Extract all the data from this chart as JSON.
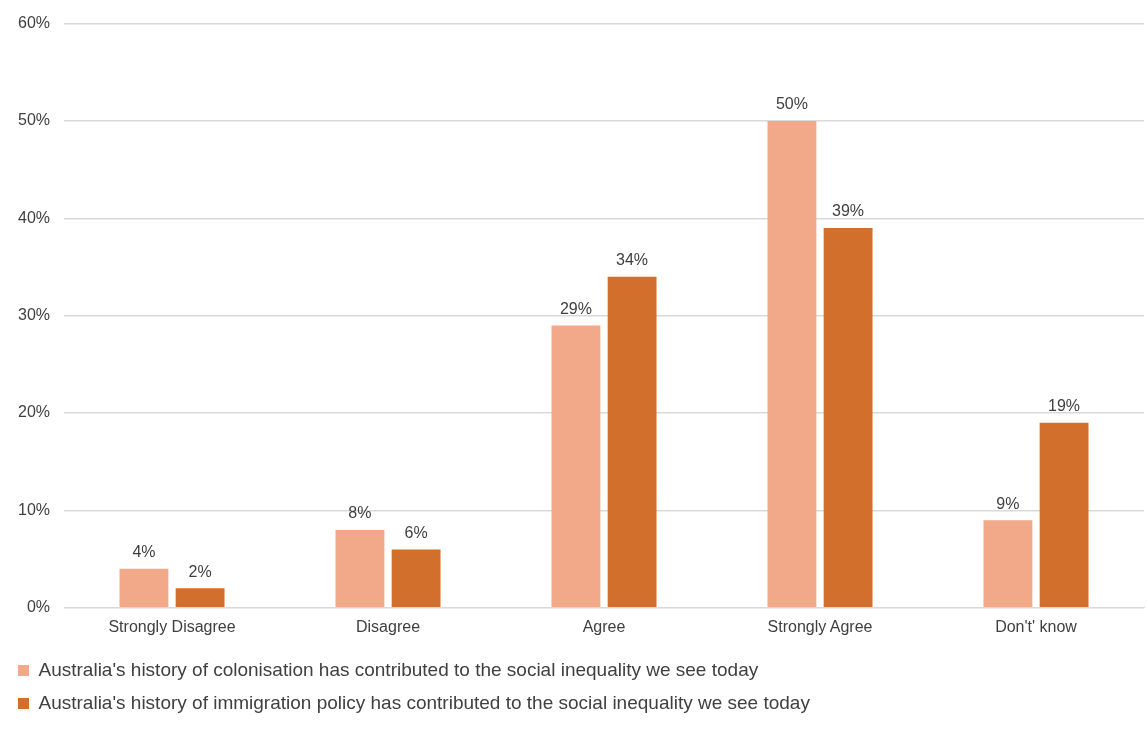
{
  "chart_data": {
    "type": "bar",
    "categories": [
      "Strongly Disagree",
      "Disagree",
      "Agree",
      "Strongly Agree",
      "Don't' know"
    ],
    "series": [
      {
        "name": "Australia's history of colonisation has contributed to the social inequality we see today",
        "color": "#f2a98a",
        "values": [
          4,
          8,
          29,
          50,
          9
        ],
        "value_labels": [
          "4%",
          "8%",
          "29%",
          "50%",
          "9%"
        ]
      },
      {
        "name": "Australia's history of immigration policy has contributed to the social inequality we see today",
        "color": "#d36f2c",
        "values": [
          2,
          6,
          34,
          39,
          19
        ],
        "value_labels": [
          "2%",
          "6%",
          "34%",
          "39%",
          "19%"
        ]
      }
    ],
    "ylim": [
      0,
      60
    ],
    "yticks": [
      {
        "value": 0,
        "label": "0%"
      },
      {
        "value": 10,
        "label": "10%"
      },
      {
        "value": 20,
        "label": "20%"
      },
      {
        "value": 30,
        "label": "30%"
      },
      {
        "value": 40,
        "label": "40%"
      },
      {
        "value": 50,
        "label": "50%"
      },
      {
        "value": 60,
        "label": "60%"
      }
    ],
    "grid": "y",
    "legend": "bottom"
  }
}
